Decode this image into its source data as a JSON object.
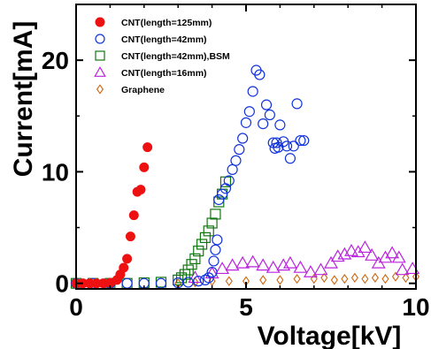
{
  "chart_data": {
    "type": "scatter",
    "xlabel": "Voltage[kV]",
    "ylabel": "Current[mA]",
    "xlim": [
      0,
      10
    ],
    "ylim": [
      -0.5,
      25
    ],
    "xticks": [
      0,
      5,
      10
    ],
    "yticks": [
      0,
      10,
      20
    ],
    "grid": false,
    "legend_position": "top-left",
    "series": [
      {
        "name": "CNT(length=125mm)",
        "marker": "filled-circle",
        "color": "#ee1111",
        "x": [
          0.0,
          0.2,
          0.4,
          0.6,
          0.8,
          1.0,
          1.2,
          1.3,
          1.4,
          1.5,
          1.6,
          1.7,
          1.8,
          1.9,
          2.0,
          2.1
        ],
        "y": [
          0.0,
          0.0,
          0.0,
          0.0,
          0.0,
          0.05,
          0.3,
          0.8,
          1.4,
          2.2,
          4.2,
          6.1,
          8.2,
          8.4,
          10.4,
          12.2
        ]
      },
      {
        "name": "CNT(length=42mm)",
        "marker": "open-circle",
        "color": "#1133dd",
        "x": [
          0.0,
          0.5,
          1.0,
          1.5,
          2.0,
          2.5,
          3.0,
          3.3,
          3.6,
          3.8,
          3.9,
          4.0,
          4.05,
          4.1,
          4.15,
          4.2,
          4.3,
          4.4,
          4.5,
          4.6,
          4.7,
          4.8,
          4.9,
          5.0,
          5.1,
          5.2,
          5.3,
          5.4,
          5.5,
          5.6,
          5.7,
          5.8,
          5.85,
          5.9,
          5.95,
          6.0,
          6.1,
          6.2,
          6.3,
          6.4,
          6.5,
          6.6,
          6.7
        ],
        "y": [
          0.0,
          0.0,
          0.0,
          0.0,
          0.0,
          0.0,
          0.05,
          0.1,
          0.2,
          0.3,
          0.5,
          1.0,
          2.0,
          3.0,
          3.9,
          7.5,
          8.0,
          8.5,
          9.2,
          10.2,
          11.0,
          12.0,
          13.0,
          14.4,
          15.4,
          17.2,
          19.1,
          18.7,
          14.3,
          16.0,
          15.1,
          12.6,
          12.1,
          12.6,
          12.2,
          14.2,
          12.7,
          12.3,
          11.2,
          12.3,
          16.1,
          12.8,
          12.8
        ]
      },
      {
        "name": "CNT(length=42mm),BSM",
        "marker": "open-square",
        "color": "#117711",
        "x": [
          0.0,
          0.5,
          1.0,
          1.5,
          2.0,
          2.5,
          3.0,
          3.1,
          3.2,
          3.3,
          3.4,
          3.5,
          3.6,
          3.7,
          3.8,
          3.9,
          4.0,
          4.1,
          4.2,
          4.3,
          4.4
        ],
        "y": [
          0.0,
          0.0,
          0.0,
          0.0,
          0.05,
          0.1,
          0.3,
          0.5,
          0.8,
          1.2,
          1.7,
          2.2,
          2.9,
          3.5,
          4.1,
          4.7,
          5.4,
          6.2,
          7.3,
          8.0,
          9.1
        ]
      },
      {
        "name": "CNT(length=16mm)",
        "marker": "open-triangle",
        "color": "#bb22dd",
        "x": [
          3.5,
          4.0,
          4.3,
          4.6,
          4.9,
          5.2,
          5.5,
          5.8,
          6.1,
          6.3,
          6.6,
          6.9,
          7.2,
          7.5,
          7.7,
          7.9,
          8.1,
          8.3,
          8.5,
          8.7,
          8.9,
          9.1,
          9.3,
          9.5,
          9.6,
          9.9
        ],
        "y": [
          0.5,
          0.9,
          1.3,
          1.6,
          1.8,
          1.9,
          1.6,
          1.4,
          1.6,
          1.8,
          1.4,
          1.0,
          1.2,
          1.8,
          2.4,
          2.6,
          2.9,
          2.8,
          3.2,
          2.5,
          1.8,
          2.3,
          2.7,
          2.3,
          1.2,
          1.3
        ]
      },
      {
        "name": "Graphene",
        "marker": "open-diamond",
        "color": "#cc6611",
        "x": [
          3.0,
          3.5,
          4.0,
          4.5,
          5.0,
          5.5,
          6.0,
          6.5,
          7.0,
          7.3,
          7.6,
          7.9,
          8.2,
          8.5,
          8.8,
          9.1,
          9.4,
          9.7,
          10.0
        ],
        "y": [
          0.0,
          0.1,
          0.2,
          0.2,
          0.2,
          0.3,
          0.3,
          0.4,
          0.4,
          0.5,
          0.3,
          0.4,
          0.5,
          0.4,
          0.5,
          0.4,
          0.6,
          0.5,
          0.6
        ]
      }
    ]
  }
}
